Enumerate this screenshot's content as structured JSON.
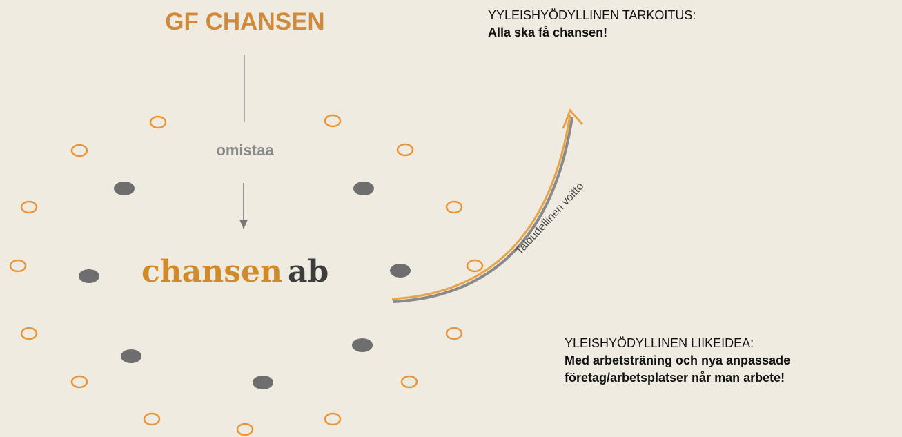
{
  "title": "GF CHANSEN",
  "owner_label": "omistaa",
  "logo": {
    "main": "chansen",
    "suffix": "ab"
  },
  "arrow_label": "Taloudellinen voitto",
  "purpose": {
    "heading": "YYLEISHYÖDYLLINEN TARKOITUS:",
    "text": "Alla ska få chansen!"
  },
  "business_idea": {
    "heading": "YLEISHYÖDYLLINEN LIIKEIDEA:",
    "lines": [
      "Med arbetsträning och nya anpassade",
      "företag/arbetsplatser når man arbete!"
    ]
  }
}
